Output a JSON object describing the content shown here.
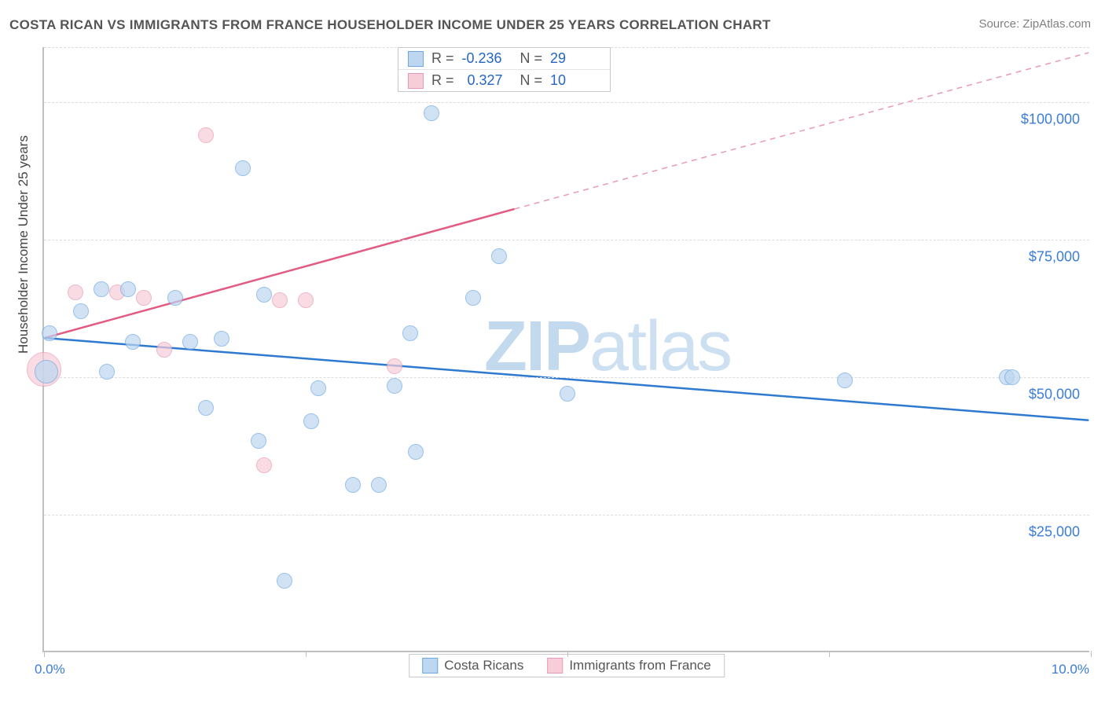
{
  "title": "COSTA RICAN VS IMMIGRANTS FROM FRANCE HOUSEHOLDER INCOME UNDER 25 YEARS CORRELATION CHART",
  "source": "Source: ZipAtlas.com",
  "watermark_a": "ZIP",
  "watermark_b": "atlas",
  "yaxis_label": "Householder Income Under 25 years",
  "chart": {
    "type": "scatter",
    "xlim": [
      0,
      10
    ],
    "ylim": [
      0,
      110000
    ],
    "x_ticks_at": [
      0,
      2.5,
      5,
      7.5,
      10
    ],
    "x_tick_labels_shown": {
      "0": "0.0%",
      "10": "10.0%"
    },
    "y_gridlines": [
      25000,
      50000,
      75000,
      100000,
      110000
    ],
    "y_tick_labels": {
      "25000": "$25,000",
      "50000": "$50,000",
      "75000": "$75,000",
      "100000": "$100,000"
    },
    "background_color": "#ffffff",
    "grid_color": "#dcdcdc",
    "axis_color": "#c0c0c0",
    "label_color": "#3b7dd8",
    "title_color": "#555555"
  },
  "series": [
    {
      "key": "costa_ricans",
      "label": "Costa Ricans",
      "fill": "#bdd7f0",
      "stroke": "#6fa8e0",
      "fill_opacity": 0.7,
      "marker_r": 10,
      "R": "-0.236",
      "N": "29",
      "regression": {
        "x1": 0,
        "y1": 57000,
        "x2": 10,
        "y2": 42000,
        "color": "#2f7ad1",
        "width": 2.5,
        "dash": "none"
      },
      "points": [
        {
          "x": 0.02,
          "y": 51000,
          "r": 15
        },
        {
          "x": 0.05,
          "y": 58000
        },
        {
          "x": 0.35,
          "y": 62000
        },
        {
          "x": 0.55,
          "y": 66000
        },
        {
          "x": 0.8,
          "y": 66000
        },
        {
          "x": 0.6,
          "y": 51000
        },
        {
          "x": 0.85,
          "y": 56500
        },
        {
          "x": 1.25,
          "y": 64500
        },
        {
          "x": 1.4,
          "y": 56500
        },
        {
          "x": 1.55,
          "y": 44500
        },
        {
          "x": 1.7,
          "y": 57000
        },
        {
          "x": 1.9,
          "y": 88000
        },
        {
          "x": 2.05,
          "y": 38500
        },
        {
          "x": 2.1,
          "y": 65000
        },
        {
          "x": 2.3,
          "y": 13000
        },
        {
          "x": 2.55,
          "y": 42000
        },
        {
          "x": 2.62,
          "y": 48000
        },
        {
          "x": 2.95,
          "y": 30500
        },
        {
          "x": 3.2,
          "y": 30500
        },
        {
          "x": 3.35,
          "y": 48500
        },
        {
          "x": 3.5,
          "y": 58000
        },
        {
          "x": 3.55,
          "y": 36500
        },
        {
          "x": 3.7,
          "y": 98000
        },
        {
          "x": 4.1,
          "y": 64500
        },
        {
          "x": 4.35,
          "y": 72000
        },
        {
          "x": 5.0,
          "y": 47000
        },
        {
          "x": 7.65,
          "y": 49500
        },
        {
          "x": 9.2,
          "y": 50000
        },
        {
          "x": 9.25,
          "y": 50000
        }
      ]
    },
    {
      "key": "france",
      "label": "Immigrants from France",
      "fill": "#f6cdd8",
      "stroke": "#e99ab1",
      "fill_opacity": 0.7,
      "marker_r": 10,
      "R": "0.327",
      "N": "10",
      "regression_solid": {
        "x1": 0,
        "y1": 57000,
        "x2": 4.5,
        "y2": 80500,
        "color": "#e35a82",
        "width": 2.5
      },
      "regression_dashed": {
        "x1": 4.5,
        "y1": 80500,
        "x2": 10,
        "y2": 109000,
        "color": "#e99ab1",
        "width": 1.5
      },
      "points": [
        {
          "x": 0.0,
          "y": 51500,
          "r": 22
        },
        {
          "x": 0.3,
          "y": 65500
        },
        {
          "x": 0.7,
          "y": 65500
        },
        {
          "x": 0.95,
          "y": 64500
        },
        {
          "x": 1.15,
          "y": 55000
        },
        {
          "x": 1.55,
          "y": 94000
        },
        {
          "x": 2.25,
          "y": 64000
        },
        {
          "x": 2.1,
          "y": 34000
        },
        {
          "x": 2.5,
          "y": 64000
        },
        {
          "x": 3.35,
          "y": 52000
        }
      ]
    }
  ],
  "legend_top": {
    "R_label": "R =",
    "N_label": "N ="
  },
  "legend_bottom": {}
}
